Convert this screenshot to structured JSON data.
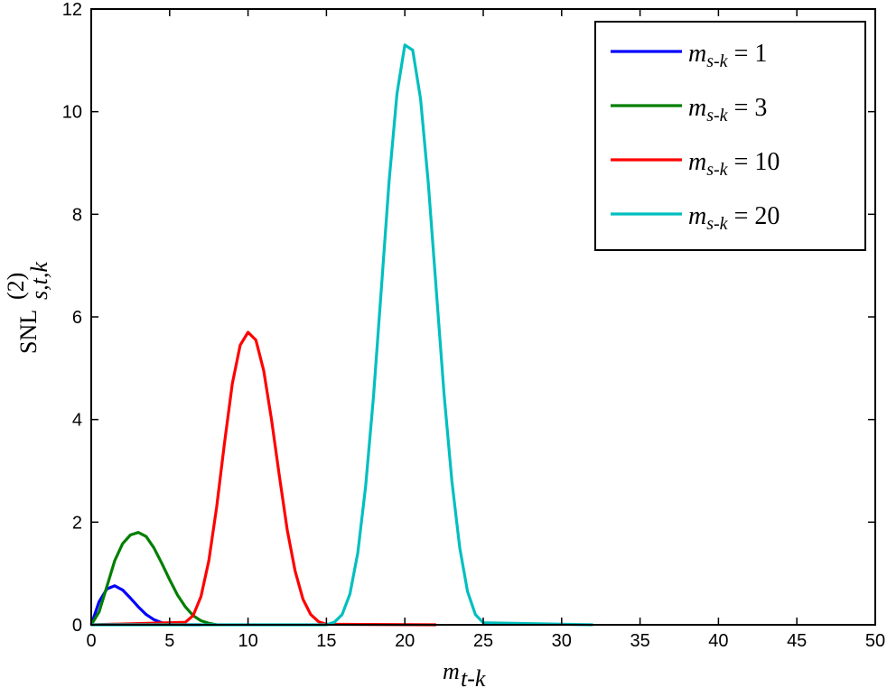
{
  "chart_data": {
    "type": "line",
    "xlabel": "m_{t-k}",
    "ylabel": "SNL^{(2)}_{s,t,k}",
    "xlim": [
      0,
      50
    ],
    "ylim": [
      0,
      12
    ],
    "xticks": [
      0,
      5,
      10,
      15,
      20,
      25,
      30,
      35,
      40,
      45,
      50
    ],
    "yticks": [
      0,
      2,
      4,
      6,
      8,
      10,
      12
    ],
    "grid": false,
    "legend_position": "top-right",
    "series": [
      {
        "name": "m_{s-k} = 1",
        "color": "#0000ff",
        "x": [
          0,
          0.5,
          1,
          1.5,
          2,
          2.5,
          3,
          3.5,
          4,
          4.5,
          5,
          6,
          7
        ],
        "y": [
          0,
          0.45,
          0.7,
          0.76,
          0.68,
          0.52,
          0.35,
          0.2,
          0.1,
          0.04,
          0.01,
          0,
          0
        ]
      },
      {
        "name": "m_{s-k} = 3",
        "color": "#007f00",
        "x": [
          0,
          0.5,
          1,
          1.5,
          2,
          2.5,
          3,
          3.5,
          4,
          4.5,
          5,
          5.5,
          6,
          6.5,
          7,
          7.5,
          8
        ],
        "y": [
          0,
          0.25,
          0.75,
          1.25,
          1.58,
          1.75,
          1.8,
          1.72,
          1.5,
          1.2,
          0.88,
          0.58,
          0.35,
          0.18,
          0.08,
          0.03,
          0
        ]
      },
      {
        "name": "m_{s-k} = 10",
        "color": "#ff0000",
        "x": [
          0,
          6,
          6.5,
          7,
          7.5,
          8,
          8.5,
          9,
          9.5,
          10,
          10.5,
          11,
          11.5,
          12,
          12.5,
          13,
          13.5,
          14,
          14.5,
          15,
          22
        ],
        "y": [
          0,
          0.05,
          0.18,
          0.55,
          1.25,
          2.3,
          3.55,
          4.7,
          5.45,
          5.7,
          5.55,
          4.95,
          4.0,
          2.9,
          1.85,
          1.05,
          0.5,
          0.2,
          0.06,
          0.01,
          0
        ]
      },
      {
        "name": "m_{s-k} = 20",
        "color": "#00bfbf",
        "x": [
          0,
          15,
          15.5,
          16,
          16.5,
          17,
          17.5,
          18,
          18.5,
          19,
          19.5,
          20,
          20.5,
          21,
          21.5,
          22,
          22.5,
          23,
          23.5,
          24,
          24.5,
          25,
          32
        ],
        "y": [
          0,
          0,
          0.05,
          0.2,
          0.6,
          1.4,
          2.7,
          4.45,
          6.55,
          8.65,
          10.35,
          11.3,
          11.2,
          10.25,
          8.6,
          6.55,
          4.5,
          2.8,
          1.5,
          0.65,
          0.2,
          0.04,
          0
        ]
      }
    ]
  }
}
